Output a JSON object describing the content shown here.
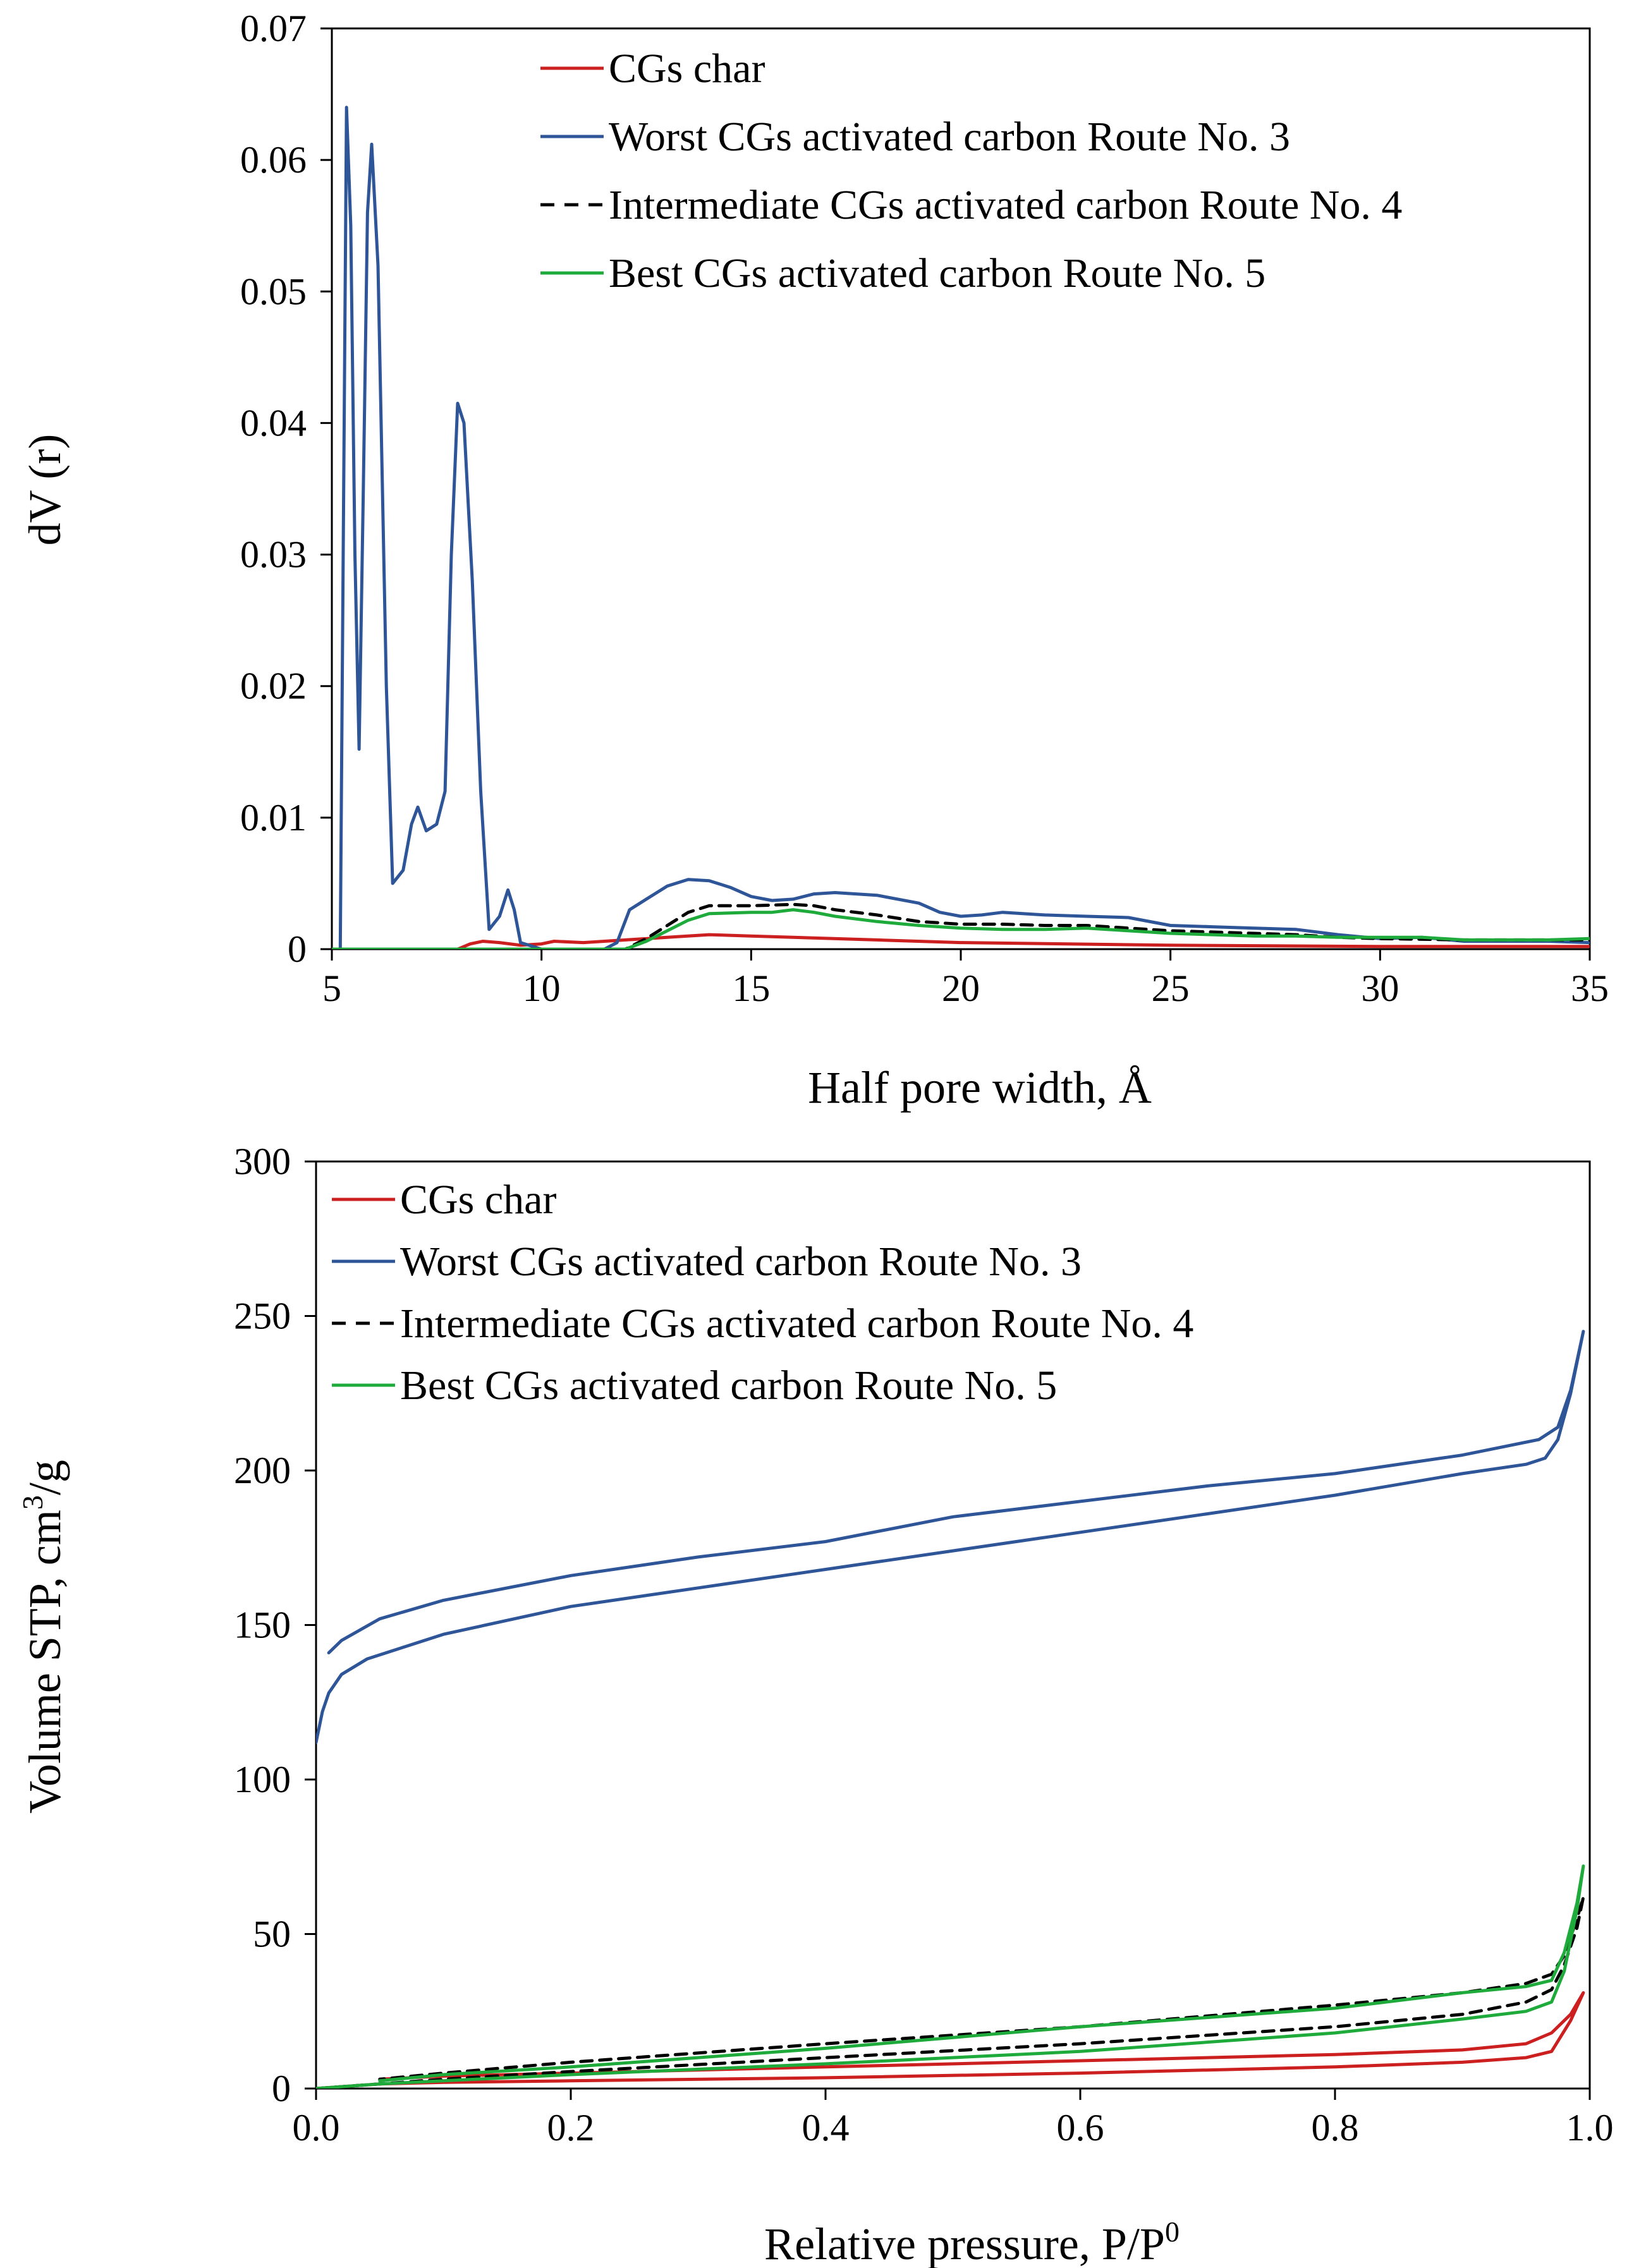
{
  "chart_data": [
    {
      "type": "line",
      "title": "",
      "xlabel": "Half pore width, Å",
      "ylabel": "dV (r)",
      "xlim": [
        5,
        35
      ],
      "ylim": [
        0,
        0.07
      ],
      "xticks": [
        "5",
        "10",
        "15",
        "20",
        "25",
        "30",
        "35"
      ],
      "yticks": [
        "0",
        "0.01",
        "0.02",
        "0.03",
        "0.04",
        "0.05",
        "0.06",
        "0.07"
      ],
      "grid": false,
      "legend_position": "top-right",
      "series": [
        {
          "name": "CGs char",
          "color": "#cc1f1f",
          "dash": "solid",
          "points": [
            [
              5,
              0
            ],
            [
              8,
              0
            ],
            [
              8.3,
              0.0004
            ],
            [
              8.6,
              0.0006
            ],
            [
              9,
              0.0005
            ],
            [
              9.5,
              0.0003
            ],
            [
              10,
              0.0004
            ],
            [
              10.3,
              0.0006
            ],
            [
              11,
              0.0005
            ],
            [
              12,
              0.0007
            ],
            [
              13,
              0.0009
            ],
            [
              14,
              0.0011
            ],
            [
              15,
              0.001
            ],
            [
              16,
              0.0009
            ],
            [
              18,
              0.0007
            ],
            [
              20,
              0.0005
            ],
            [
              25,
              0.0003
            ],
            [
              30,
              0.0002
            ],
            [
              35,
              0.0002
            ]
          ]
        },
        {
          "name": "Worst CGs activated carbon Route No. 3",
          "color": "#2e5597",
          "dash": "solid",
          "points": [
            [
              5,
              0
            ],
            [
              5.2,
              0
            ],
            [
              5.35,
              0.064
            ],
            [
              5.45,
              0.055
            ],
            [
              5.55,
              0.03
            ],
            [
              5.65,
              0.0152
            ],
            [
              5.75,
              0.035
            ],
            [
              5.85,
              0.056
            ],
            [
              5.95,
              0.0612
            ],
            [
              6.1,
              0.052
            ],
            [
              6.3,
              0.02
            ],
            [
              6.45,
              0.005
            ],
            [
              6.7,
              0.006
            ],
            [
              6.9,
              0.0095
            ],
            [
              7.05,
              0.0108
            ],
            [
              7.25,
              0.009
            ],
            [
              7.5,
              0.0095
            ],
            [
              7.7,
              0.012
            ],
            [
              7.85,
              0.03
            ],
            [
              8.0,
              0.0415
            ],
            [
              8.15,
              0.04
            ],
            [
              8.35,
              0.028
            ],
            [
              8.55,
              0.012
            ],
            [
              8.75,
              0.0015
            ],
            [
              9.0,
              0.0025
            ],
            [
              9.2,
              0.0045
            ],
            [
              9.35,
              0.003
            ],
            [
              9.5,
              0.0005
            ],
            [
              10,
              0
            ],
            [
              11.5,
              0
            ],
            [
              11.8,
              0.0005
            ],
            [
              12.1,
              0.003
            ],
            [
              12.5,
              0.0038
            ],
            [
              13,
              0.0048
            ],
            [
              13.5,
              0.0053
            ],
            [
              14,
              0.0052
            ],
            [
              14.5,
              0.0047
            ],
            [
              15,
              0.004
            ],
            [
              15.5,
              0.0037
            ],
            [
              16,
              0.0038
            ],
            [
              16.5,
              0.0042
            ],
            [
              17,
              0.0043
            ],
            [
              18,
              0.0041
            ],
            [
              19,
              0.0035
            ],
            [
              19.5,
              0.0028
            ],
            [
              20,
              0.0025
            ],
            [
              20.5,
              0.0026
            ],
            [
              21,
              0.0028
            ],
            [
              22,
              0.0026
            ],
            [
              23,
              0.0025
            ],
            [
              24,
              0.0024
            ],
            [
              25,
              0.0018
            ],
            [
              26,
              0.0017
            ],
            [
              27,
              0.0016
            ],
            [
              28,
              0.0015
            ],
            [
              29,
              0.0011
            ],
            [
              30,
              0.0008
            ],
            [
              31,
              0.0009
            ],
            [
              32,
              0.0006
            ],
            [
              33,
              0.0006
            ],
            [
              34,
              0.0006
            ],
            [
              35,
              0.0005
            ]
          ]
        },
        {
          "name": "Intermediate CGs activated carbon Route No. 4",
          "color": "#000000",
          "dash": "dashed",
          "points": [
            [
              5,
              0
            ],
            [
              12,
              0
            ],
            [
              12.5,
              0.0008
            ],
            [
              13,
              0.0018
            ],
            [
              13.5,
              0.0028
            ],
            [
              14,
              0.0033
            ],
            [
              15,
              0.0033
            ],
            [
              16,
              0.0034
            ],
            [
              16.5,
              0.0033
            ],
            [
              17,
              0.003
            ],
            [
              18,
              0.0026
            ],
            [
              19,
              0.0021
            ],
            [
              20,
              0.0019
            ],
            [
              21,
              0.0019
            ],
            [
              22,
              0.0018
            ],
            [
              23,
              0.0018
            ],
            [
              24,
              0.0016
            ],
            [
              25,
              0.0014
            ],
            [
              26,
              0.0013
            ],
            [
              27,
              0.0012
            ],
            [
              28,
              0.0011
            ],
            [
              29,
              0.0009
            ],
            [
              30,
              0.0008
            ],
            [
              32,
              0.0007
            ],
            [
              35,
              0.0007
            ]
          ]
        },
        {
          "name": "Best CGs activated carbon Route No. 5",
          "color": "#1faa3c",
          "dash": "solid",
          "points": [
            [
              5,
              0
            ],
            [
              12,
              0
            ],
            [
              12.5,
              0.0006
            ],
            [
              13,
              0.0014
            ],
            [
              13.5,
              0.0022
            ],
            [
              14,
              0.0027
            ],
            [
              15,
              0.0028
            ],
            [
              15.5,
              0.0028
            ],
            [
              16,
              0.003
            ],
            [
              16.5,
              0.0028
            ],
            [
              17,
              0.0025
            ],
            [
              18,
              0.0021
            ],
            [
              19,
              0.0018
            ],
            [
              20,
              0.0016
            ],
            [
              21,
              0.0015
            ],
            [
              22,
              0.0015
            ],
            [
              23,
              0.0016
            ],
            [
              24,
              0.0014
            ],
            [
              25,
              0.0012
            ],
            [
              26,
              0.0011
            ],
            [
              27,
              0.001
            ],
            [
              28,
              0.001
            ],
            [
              29,
              0.0009
            ],
            [
              30,
              0.0009
            ],
            [
              31,
              0.0009
            ],
            [
              32,
              0.0007
            ],
            [
              33,
              0.0007
            ],
            [
              34,
              0.0007
            ],
            [
              35,
              0.0008
            ]
          ]
        }
      ]
    },
    {
      "type": "line",
      "title": "",
      "xlabel": "Relative pressure, P/P",
      "xlabel_sup": "0",
      "ylabel": "Volume STP, cm",
      "ylabel_sup": "3",
      "ylabel_suffix": "/g",
      "xlim": [
        0,
        1
      ],
      "ylim": [
        0,
        300
      ],
      "xticks": [
        "0.0",
        "0.2",
        "0.4",
        "0.6",
        "0.8",
        "1.0"
      ],
      "yticks": [
        "0",
        "50",
        "100",
        "150",
        "200",
        "250",
        "300"
      ],
      "grid": false,
      "legend_position": "top-left",
      "series": [
        {
          "name": "CGs char",
          "color": "#cc1f1f",
          "dash": "solid",
          "points": [
            [
              0,
              0
            ],
            [
              0.05,
              1.5
            ],
            [
              0.1,
              2
            ],
            [
              0.2,
              2.5
            ],
            [
              0.4,
              3.5
            ],
            [
              0.6,
              5
            ],
            [
              0.8,
              7
            ],
            [
              0.9,
              8.5
            ],
            [
              0.95,
              10
            ],
            [
              0.97,
              12
            ],
            [
              0.985,
              22
            ],
            [
              0.995,
              31
            ],
            [
              0.985,
              24
            ],
            [
              0.97,
              18
            ],
            [
              0.95,
              14.5
            ],
            [
              0.9,
              12.5
            ],
            [
              0.8,
              11
            ],
            [
              0.6,
              9
            ],
            [
              0.4,
              7
            ],
            [
              0.2,
              5
            ],
            [
              0.1,
              4
            ],
            [
              0.05,
              3
            ]
          ]
        },
        {
          "name": "Worst CGs activated carbon Route No. 3",
          "color": "#2e5597",
          "dash": "solid",
          "points": [
            [
              0.0,
              112
            ],
            [
              0.005,
              122
            ],
            [
              0.01,
              128
            ],
            [
              0.02,
              134
            ],
            [
              0.04,
              139
            ],
            [
              0.07,
              143
            ],
            [
              0.1,
              147
            ],
            [
              0.2,
              156
            ],
            [
              0.3,
              162
            ],
            [
              0.4,
              168
            ],
            [
              0.5,
              174
            ],
            [
              0.6,
              180
            ],
            [
              0.7,
              186
            ],
            [
              0.8,
              192
            ],
            [
              0.9,
              199
            ],
            [
              0.95,
              202
            ],
            [
              0.965,
              204
            ],
            [
              0.975,
              210
            ],
            [
              0.985,
              225
            ],
            [
              0.995,
              245
            ],
            [
              0.985,
              226
            ],
            [
              0.975,
              214
            ],
            [
              0.96,
              210
            ],
            [
              0.9,
              205
            ],
            [
              0.8,
              199
            ],
            [
              0.7,
              195
            ],
            [
              0.6,
              190
            ],
            [
              0.5,
              185
            ],
            [
              0.4,
              177
            ],
            [
              0.3,
              172
            ],
            [
              0.2,
              166
            ],
            [
              0.1,
              158
            ],
            [
              0.05,
              152
            ],
            [
              0.02,
              145
            ],
            [
              0.01,
              141
            ]
          ]
        },
        {
          "name": "Intermediate CGs activated carbon Route No. 4",
          "color": "#000000",
          "dash": "dashed",
          "points": [
            [
              0,
              0
            ],
            [
              0.05,
              1.5
            ],
            [
              0.1,
              3
            ],
            [
              0.2,
              5.5
            ],
            [
              0.4,
              10
            ],
            [
              0.6,
              14.5
            ],
            [
              0.8,
              20
            ],
            [
              0.9,
              24
            ],
            [
              0.95,
              28
            ],
            [
              0.97,
              32
            ],
            [
              0.98,
              40
            ],
            [
              0.99,
              52
            ],
            [
              0.995,
              62
            ],
            [
              0.99,
              55
            ],
            [
              0.98,
              43
            ],
            [
              0.97,
              37
            ],
            [
              0.95,
              34
            ],
            [
              0.9,
              31
            ],
            [
              0.8,
              27
            ],
            [
              0.6,
              20
            ],
            [
              0.4,
              14.5
            ],
            [
              0.2,
              8.5
            ],
            [
              0.1,
              5
            ],
            [
              0.05,
              3
            ]
          ]
        },
        {
          "name": "Best CGs activated carbon Route No. 5",
          "color": "#1faa3c",
          "dash": "solid",
          "points": [
            [
              0,
              0
            ],
            [
              0.05,
              1.5
            ],
            [
              0.1,
              2.5
            ],
            [
              0.2,
              4.5
            ],
            [
              0.4,
              8
            ],
            [
              0.6,
              12
            ],
            [
              0.8,
              18
            ],
            [
              0.9,
              22.5
            ],
            [
              0.95,
              25
            ],
            [
              0.97,
              28
            ],
            [
              0.98,
              38
            ],
            [
              0.99,
              58
            ],
            [
              0.995,
              72
            ],
            [
              0.99,
              60
            ],
            [
              0.98,
              44
            ],
            [
              0.97,
              35
            ],
            [
              0.95,
              33
            ],
            [
              0.9,
              31
            ],
            [
              0.8,
              26
            ],
            [
              0.6,
              20
            ],
            [
              0.4,
              13
            ],
            [
              0.2,
              7
            ],
            [
              0.1,
              4.5
            ],
            [
              0.05,
              2.5
            ]
          ]
        }
      ]
    }
  ]
}
